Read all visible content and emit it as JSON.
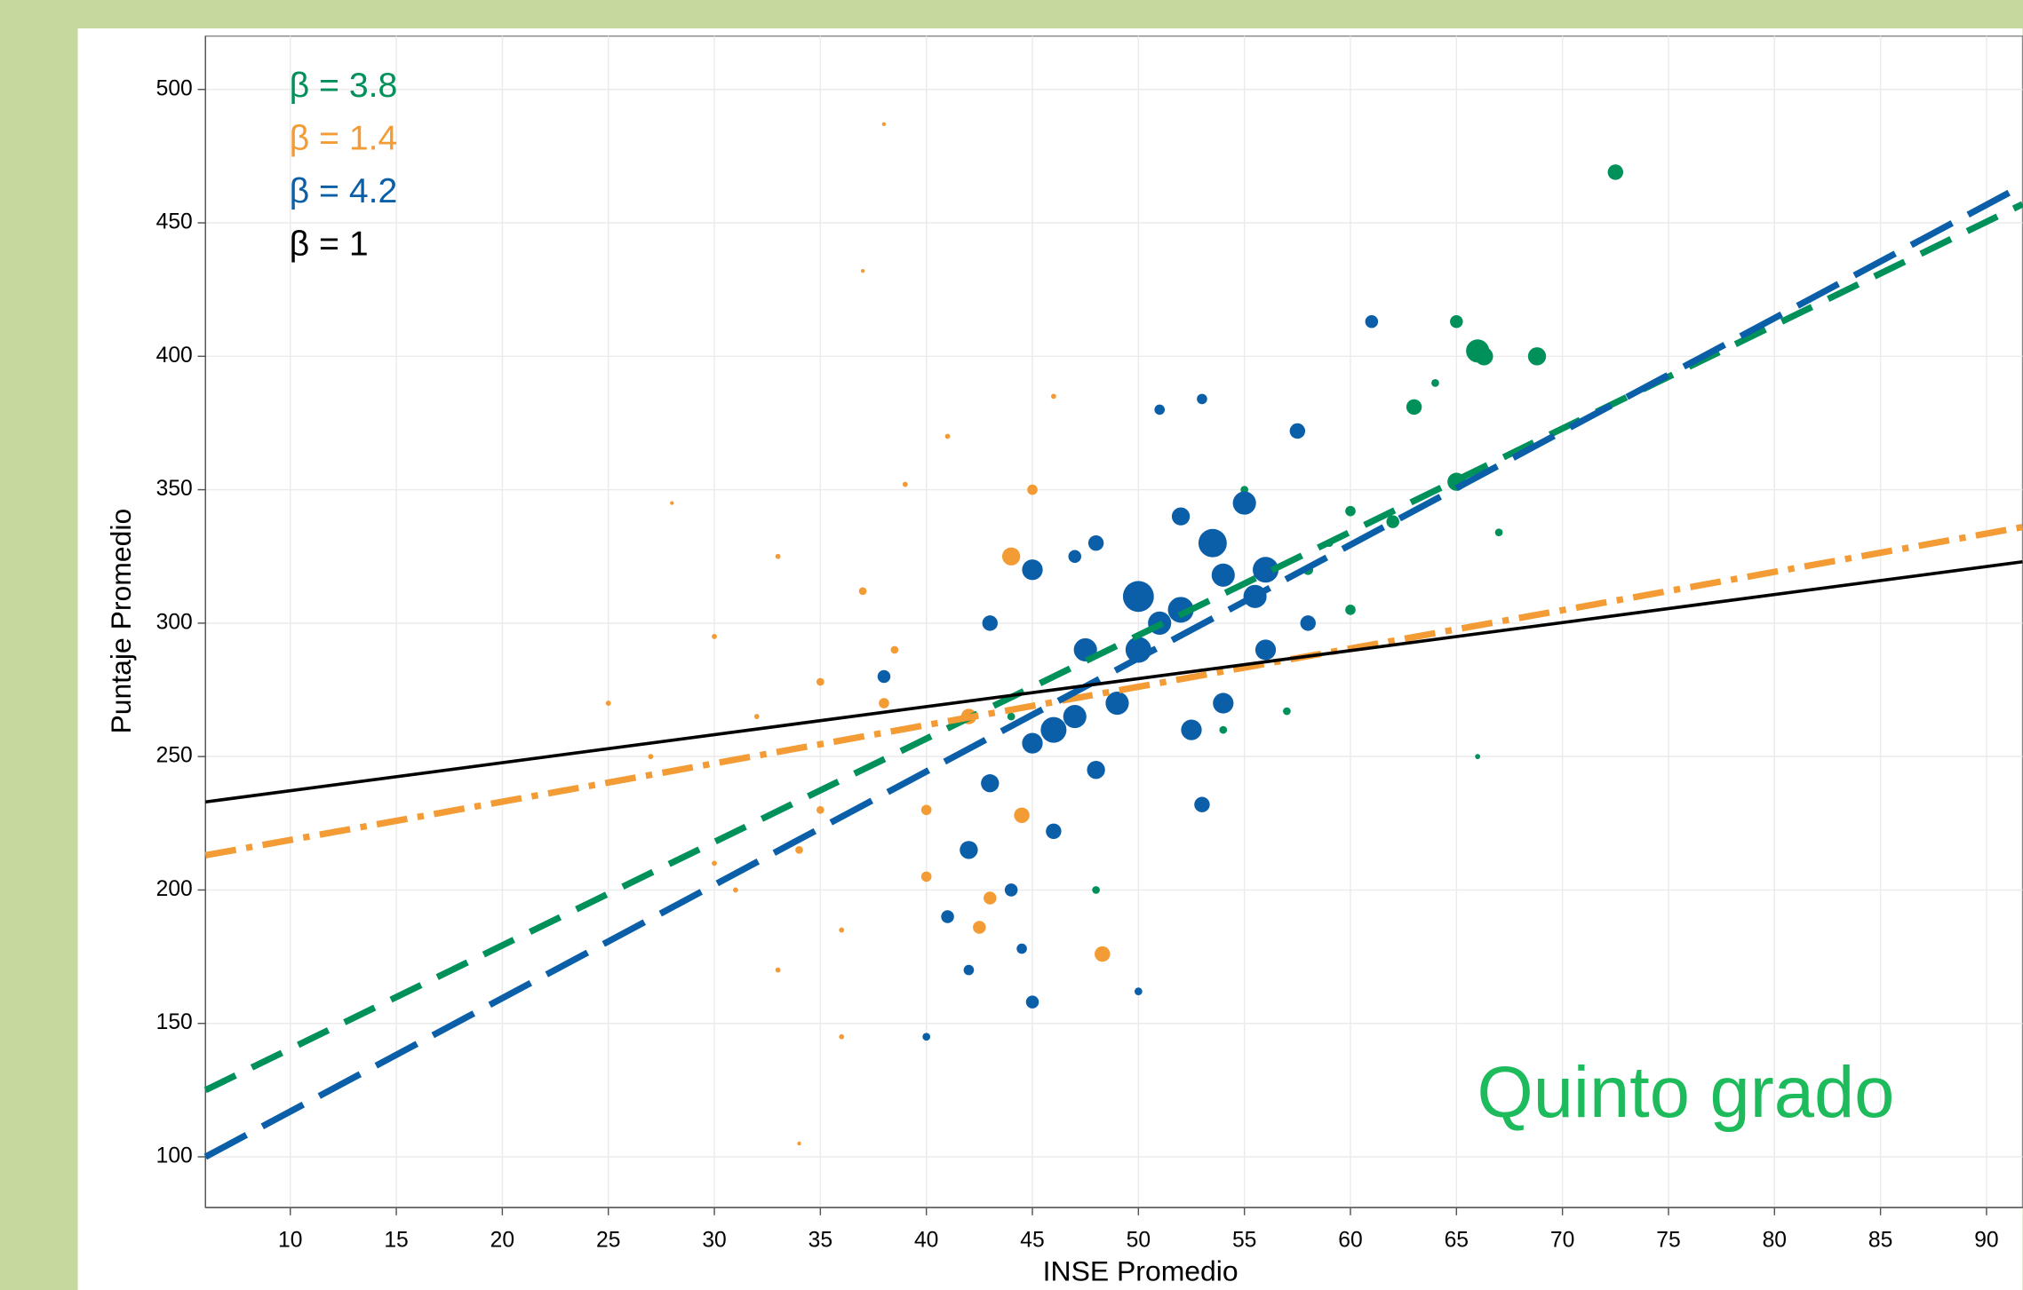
{
  "chart_data": {
    "type": "scatter",
    "x_label": "INSE Promedio",
    "y_label": "Puntaje Promedio",
    "annotation": "Quinto grado",
    "xlim": [
      6,
      91.7
    ],
    "ylim": [
      81,
      520
    ],
    "xticks": [
      10,
      15,
      20,
      25,
      30,
      35,
      40,
      45,
      50,
      55,
      60,
      65,
      70,
      75,
      80,
      85,
      90
    ],
    "yticks": [
      100,
      150,
      200,
      250,
      300,
      350,
      400,
      450,
      500
    ],
    "grid": true,
    "series": [
      {
        "name": "β = 3.8",
        "color": "#00915a",
        "x": [
          72.5,
          66,
          66.3,
          68.8,
          65,
          63,
          65,
          62,
          60,
          58,
          60,
          55,
          54,
          57,
          66,
          48,
          44,
          64,
          67,
          59
        ],
        "values": [
          469,
          402,
          400,
          400,
          413,
          381,
          353,
          338,
          342,
          320,
          305,
          350,
          260,
          267,
          250,
          200,
          265,
          390,
          334,
          330
        ],
        "sizes": [
          6,
          9,
          7,
          7,
          5,
          6,
          7,
          5,
          4,
          4,
          4,
          3,
          3,
          3,
          2,
          3,
          3,
          3,
          3,
          3
        ],
        "line": {
          "x": [
            6,
            91.7
          ],
          "y": [
            125,
            457
          ],
          "dash": "26 14"
        }
      },
      {
        "name": "β = 1.4",
        "color": "#f39b34",
        "x": [
          30,
          35,
          38,
          42,
          44,
          48.3,
          44.5,
          40,
          43,
          35,
          30,
          27,
          33,
          36,
          34,
          38,
          37,
          28,
          33,
          39,
          45,
          37,
          32,
          41,
          36,
          46,
          25,
          40,
          34,
          31,
          42.5,
          38.5
        ],
        "values": [
          295,
          278,
          270,
          265,
          325,
          176,
          228,
          205,
          197,
          230,
          210,
          250,
          170,
          145,
          105,
          487,
          432,
          345,
          325,
          352,
          350,
          312,
          265,
          370,
          185,
          385,
          270,
          230,
          215,
          200,
          186,
          290
        ],
        "sizes": [
          2,
          3,
          4,
          6,
          7,
          6,
          6,
          4,
          5,
          3,
          2,
          2,
          2,
          2,
          1.5,
          1.5,
          1.5,
          1.5,
          2,
          2,
          4,
          3,
          2,
          2,
          2,
          2,
          2,
          4,
          3,
          2,
          5,
          3
        ],
        "line": {
          "x": [
            6,
            91.7
          ],
          "y": [
            213,
            336
          ],
          "dash": "24 8 5 8"
        }
      },
      {
        "name": "β = 4.2",
        "color": "#0a5fa8",
        "x": [
          61,
          57.5,
          53,
          51,
          47,
          50,
          52,
          54,
          55,
          56,
          49,
          47,
          45,
          43,
          42,
          44,
          45,
          40,
          50,
          54,
          48,
          56,
          58,
          46,
          53,
          41,
          42,
          44.5,
          51,
          50,
          45,
          48,
          52,
          43,
          38,
          53.5,
          55.5,
          47.5,
          46,
          52.5
        ],
        "values": [
          413,
          372,
          384,
          380,
          325,
          310,
          305,
          318,
          345,
          320,
          270,
          265,
          255,
          240,
          215,
          200,
          158,
          145,
          162,
          270,
          245,
          290,
          300,
          222,
          232,
          190,
          170,
          178,
          300,
          290,
          320,
          330,
          340,
          300,
          280,
          330,
          310,
          290,
          260,
          260
        ],
        "sizes": [
          5,
          6,
          4,
          4,
          5,
          12,
          10,
          9,
          9,
          10,
          9,
          9,
          8,
          7,
          7,
          5,
          5,
          3,
          3,
          8,
          7,
          8,
          6,
          6,
          6,
          5,
          4,
          4,
          9,
          10,
          8,
          6,
          7,
          6,
          5,
          11,
          9,
          9,
          10,
          8
        ],
        "line": {
          "x": [
            6,
            91.7
          ],
          "y": [
            100,
            464
          ],
          "dash": "36 14"
        }
      },
      {
        "name": "β = 1",
        "color": "#000000",
        "x": [],
        "values": [],
        "sizes": [],
        "line": {
          "x": [
            6,
            91.7
          ],
          "y": [
            233,
            323
          ],
          "dash": ""
        }
      }
    ]
  }
}
